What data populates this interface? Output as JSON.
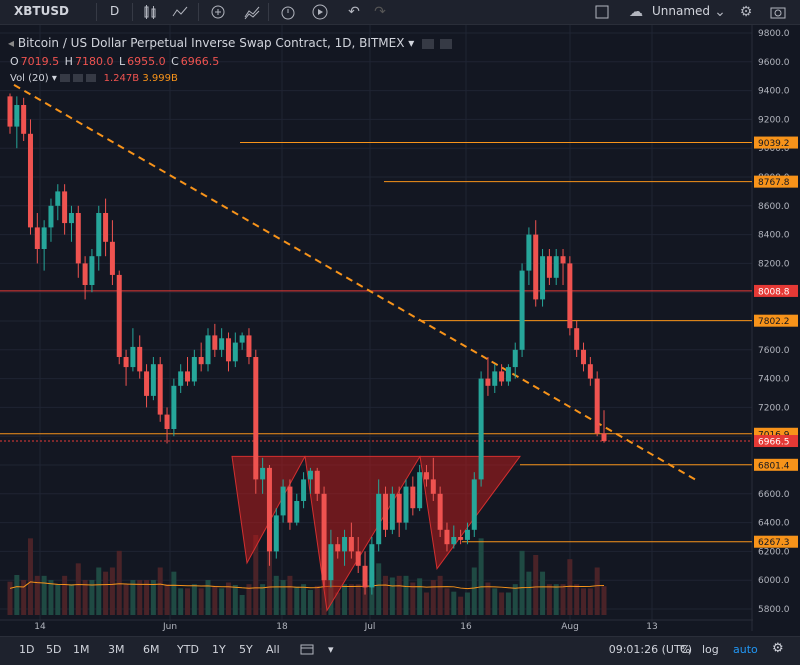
{
  "toolbar": {
    "symbol": "XBTUSD",
    "interval": "D",
    "layout_name": "Unnamed",
    "icons": [
      "chevron-down-icon",
      "candles-icon",
      "indicators-icon",
      "compare-icon",
      "area-icon",
      "alert-icon",
      "replay-icon",
      "undo-icon",
      "redo-icon",
      "fullscreen-icon",
      "cloud-icon",
      "settings-icon",
      "camera-icon"
    ]
  },
  "legend": {
    "title": "Bitcoin / US Dollar Perpetual Inverse Swap Contract, 1D, BITMEX",
    "o_label": "O",
    "o": "7019.5",
    "h_label": "H",
    "h": "7180.0",
    "l_label": "L",
    "l": "6955.0",
    "c_label": "C",
    "c": "6966.5",
    "vol_label": "Vol (20)",
    "vol_a": "1.247B",
    "vol_b": "3.999B"
  },
  "bottom": {
    "ranges": [
      "1D",
      "5D",
      "1M",
      "3M",
      "6M",
      "YTD",
      "1Y",
      "5Y",
      "All"
    ],
    "time": "09:01:26 (UTC)",
    "percent": "%",
    "log": "log",
    "auto": "auto"
  },
  "colors": {
    "background": "#131722",
    "up": "#26a69a",
    "down": "#ef5350",
    "orange": "#f7931a",
    "red_line": "#e53935",
    "triangle_fill": "#b71c1c"
  },
  "chart_data": {
    "type": "candlestick",
    "title": "Bitcoin / US Dollar Perpetual Inverse Swap Contract, 1D, BITMEX",
    "y_ticks": [
      5800,
      6000,
      6200,
      6400,
      6600,
      6800,
      7000,
      7200,
      7400,
      7600,
      7800,
      8000,
      8200,
      8400,
      8600,
      8800,
      9000,
      9200,
      9400,
      9600,
      9800
    ],
    "y_range": [
      5760,
      9840
    ],
    "x_ticks": [
      "14",
      "Jun",
      "18",
      "Jul",
      "16",
      "Aug",
      "13"
    ],
    "price_levels": [
      {
        "label": "9039.2",
        "value": 9039.2,
        "kind": "orange"
      },
      {
        "label": "8767.8",
        "value": 8767.8,
        "kind": "orange"
      },
      {
        "label": "8008.8",
        "value": 8008.8,
        "kind": "red"
      },
      {
        "label": "7802.2",
        "value": 7802.2,
        "kind": "orange"
      },
      {
        "label": "7016.9",
        "value": 7016.9,
        "kind": "orange"
      },
      {
        "label": "6966.5",
        "value": 6966.5,
        "kind": "red"
      },
      {
        "label": "6801.4",
        "value": 6801.4,
        "kind": "orange"
      },
      {
        "label": "6267.3",
        "value": 6267.3,
        "kind": "orange"
      }
    ],
    "candles": [
      [
        9360,
        9380,
        9100,
        9150
      ],
      [
        9150,
        9360,
        9000,
        9300
      ],
      [
        9300,
        9350,
        9050,
        9100
      ],
      [
        9100,
        9200,
        8400,
        8450
      ],
      [
        8450,
        8550,
        8200,
        8300
      ],
      [
        8300,
        8500,
        8150,
        8450
      ],
      [
        8450,
        8650,
        8350,
        8600
      ],
      [
        8600,
        8750,
        8500,
        8700
      ],
      [
        8700,
        8750,
        8400,
        8480
      ],
      [
        8480,
        8600,
        8350,
        8550
      ],
      [
        8550,
        8600,
        8100,
        8200
      ],
      [
        8200,
        8250,
        7950,
        8050
      ],
      [
        8050,
        8300,
        8000,
        8250
      ],
      [
        8250,
        8600,
        8150,
        8550
      ],
      [
        8550,
        8650,
        8250,
        8350
      ],
      [
        8350,
        8500,
        8050,
        8120
      ],
      [
        8120,
        8150,
        7500,
        7550
      ],
      [
        7550,
        7600,
        7350,
        7480
      ],
      [
        7480,
        7750,
        7450,
        7620
      ],
      [
        7620,
        7700,
        7400,
        7450
      ],
      [
        7450,
        7500,
        7200,
        7280
      ],
      [
        7280,
        7550,
        7250,
        7500
      ],
      [
        7500,
        7550,
        7100,
        7150
      ],
      [
        7150,
        7200,
        6950,
        7050
      ],
      [
        7050,
        7400,
        7000,
        7350
      ],
      [
        7350,
        7500,
        7300,
        7450
      ],
      [
        7450,
        7550,
        7350,
        7380
      ],
      [
        7380,
        7600,
        7350,
        7550
      ],
      [
        7550,
        7650,
        7450,
        7500
      ],
      [
        7500,
        7750,
        7450,
        7700
      ],
      [
        7700,
        7780,
        7550,
        7600
      ],
      [
        7600,
        7750,
        7550,
        7680
      ],
      [
        7680,
        7720,
        7450,
        7520
      ],
      [
        7520,
        7720,
        7480,
        7650
      ],
      [
        7650,
        7720,
        7600,
        7700
      ],
      [
        7700,
        7750,
        7500,
        7550
      ],
      [
        7550,
        7600,
        6600,
        6700
      ],
      [
        6700,
        6850,
        6600,
        6780
      ],
      [
        6780,
        6800,
        6100,
        6200
      ],
      [
        6200,
        6500,
        6150,
        6450
      ],
      [
        6450,
        6700,
        6400,
        6650
      ],
      [
        6650,
        6700,
        6350,
        6400
      ],
      [
        6400,
        6600,
        6380,
        6550
      ],
      [
        6550,
        6750,
        6500,
        6700
      ],
      [
        6700,
        6780,
        6600,
        6760
      ],
      [
        6760,
        6780,
        6550,
        6600
      ],
      [
        6600,
        6650,
        5950,
        6000
      ],
      [
        6000,
        6350,
        5950,
        6250
      ],
      [
        6250,
        6300,
        6150,
        6200
      ],
      [
        6200,
        6350,
        6100,
        6300
      ],
      [
        6300,
        6400,
        6150,
        6200
      ],
      [
        6200,
        6300,
        6050,
        6100
      ],
      [
        6100,
        6200,
        5900,
        5950
      ],
      [
        5950,
        6300,
        5900,
        6250
      ],
      [
        6250,
        6700,
        6200,
        6600
      ],
      [
        6600,
        6650,
        6300,
        6350
      ],
      [
        6350,
        6650,
        6320,
        6600
      ],
      [
        6600,
        6650,
        6300,
        6400
      ],
      [
        6400,
        6700,
        6350,
        6650
      ],
      [
        6650,
        6720,
        6450,
        6500
      ],
      [
        6500,
        6800,
        6480,
        6750
      ],
      [
        6750,
        6800,
        6650,
        6700
      ],
      [
        6700,
        6850,
        6550,
        6600
      ],
      [
        6600,
        6650,
        6300,
        6350
      ],
      [
        6350,
        6400,
        6200,
        6250
      ],
      [
        6250,
        6380,
        6220,
        6300
      ],
      [
        6300,
        6350,
        6250,
        6280
      ],
      [
        6280,
        6400,
        6250,
        6350
      ],
      [
        6350,
        6750,
        6300,
        6700
      ],
      [
        6700,
        7450,
        6650,
        7400
      ],
      [
        7400,
        7550,
        7280,
        7350
      ],
      [
        7350,
        7500,
        7300,
        7450
      ],
      [
        7450,
        7500,
        7350,
        7380
      ],
      [
        7380,
        7500,
        7350,
        7480
      ],
      [
        7480,
        7650,
        7400,
        7600
      ],
      [
        7600,
        8200,
        7550,
        8150
      ],
      [
        8150,
        8450,
        8050,
        8400
      ],
      [
        8400,
        8500,
        7900,
        7950
      ],
      [
        7950,
        8300,
        7900,
        8250
      ],
      [
        8250,
        8300,
        8050,
        8100
      ],
      [
        8100,
        8300,
        8050,
        8250
      ],
      [
        8250,
        8300,
        8050,
        8200
      ],
      [
        8200,
        8250,
        7700,
        7750
      ],
      [
        7750,
        7800,
        7550,
        7600
      ],
      [
        7600,
        7650,
        7450,
        7500
      ],
      [
        7500,
        7550,
        7350,
        7400
      ],
      [
        7400,
        7450,
        7000,
        7020
      ],
      [
        7020,
        7180,
        6955,
        6966.5
      ]
    ]
  }
}
